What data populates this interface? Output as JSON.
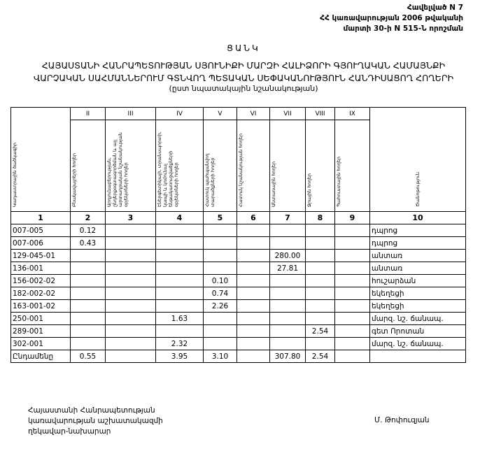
{
  "annex": {
    "line1": "Հավելված N 7",
    "line2": "ՀՀ կառավարության 2006 թվականի",
    "line3": "մարտի 30-ի N 515-Ն որոշման"
  },
  "title": "ՑԱՆԿ",
  "heading": {
    "line1": "ՀԱՅԱՍՏԱՆԻ ՀԱՆՐԱՊԵՏՈՒԹՅԱՆ ՍՅՈՒՆԻՔԻ ՄԱՐԶԻ ՀԱԼԻՁՈՐԻ ԳՅՈՒՂԱԿԱՆ ՀԱՄԱՅՆՔԻ",
    "line2": "ՎԱՐՉԱԿԱՆ ՍԱՀՄԱՆՆԵՐՈՒՄ  ԳՏՆՎՈՂ  ՊԵՏԱԿԱՆ ՍԵՓԱԿԱՆՈՒԹՅՈՒՆ  ՀԱՆԴԻՍԱՑՈՂ ՀՈՂԵՐԻ",
    "sub": "(ըստ նպատակային նշանակության)"
  },
  "table": {
    "roman": [
      "",
      "II",
      "III",
      "IV",
      "V",
      "VI",
      "VII",
      "VIII",
      "IX",
      ""
    ],
    "headers": [
      "Կադաստրային ծածկագիր",
      "Բնակավայրերի հողեր",
      "Արդյունաբերության, ընդերքօգտագործման և այլ արտադրական նշանակության օբյեկտների հողեր",
      "Էներգետիկայի, տրանսպորտի, կապի և կոմունալ ենթակառուցվածքների օբյեկտների հողեր",
      "Հատուկ պահպանվող տարածքների հողեր",
      "Հատուկ նշանակության հողեր",
      "Անտառային հողեր",
      "Ջրային հողեր",
      "Պահուստային հողեր",
      "Ծանոթություն"
    ],
    "numbers": [
      "1",
      "2",
      "3",
      "4",
      "5",
      "6",
      "7",
      "8",
      "9",
      "10"
    ],
    "rows": [
      [
        "007-005",
        "0.12",
        "",
        "",
        "",
        "",
        "",
        "",
        "",
        "դպրոց"
      ],
      [
        "007-006",
        "0.43",
        "",
        "",
        "",
        "",
        "",
        "",
        "",
        "դպրոց"
      ],
      [
        "129-045-01",
        "",
        "",
        "",
        "",
        "",
        "280.00",
        "",
        "",
        "անտառ"
      ],
      [
        "136-001",
        "",
        "",
        "",
        "",
        "",
        "27.81",
        "",
        "",
        "անտառ"
      ],
      [
        "156-002-02",
        "",
        "",
        "",
        "0.10",
        "",
        "",
        "",
        "",
        "հուշարձան"
      ],
      [
        "182-002-02",
        "",
        "",
        "",
        "0.74",
        "",
        "",
        "",
        "",
        "եկեղեցի"
      ],
      [
        "163-001-02",
        "",
        "",
        "",
        "2.26",
        "",
        "",
        "",
        "",
        "եկեղեցի"
      ],
      [
        "250-001",
        "",
        "",
        "1.63",
        "",
        "",
        "",
        "",
        "",
        "մարզ. նշ. ճանապ."
      ],
      [
        "289-001",
        "",
        "",
        "",
        "",
        "",
        "",
        "2.54",
        "",
        "գետ Որոտան"
      ],
      [
        "302-001",
        "",
        "",
        "2.32",
        "",
        "",
        "",
        "",
        "",
        "մարզ. նշ. ճանապ."
      ]
    ],
    "total": [
      "Ընդամենը",
      "0.55",
      "",
      "3.95",
      "3.10",
      "",
      "307.80",
      "2.54",
      "",
      ""
    ]
  },
  "footer": {
    "line1": "Հայաստանի Հանրապետության",
    "line2": "կառավարության աշխատակազմի",
    "line3": "ղեկավար-նախարար",
    "signatory": "Մ. Թոփուզյան"
  }
}
